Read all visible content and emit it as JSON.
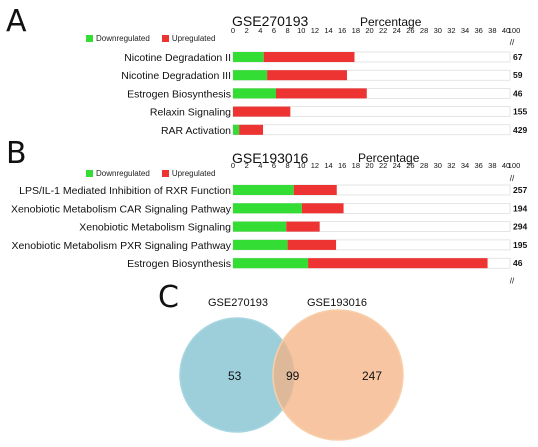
{
  "panels": [
    {
      "letter": "A"
    },
    {
      "letter": "B"
    },
    {
      "letter": "C"
    }
  ],
  "legend": {
    "down_label": "Downregulated",
    "up_label": "Upregulated",
    "down_color": "#33dd33",
    "up_color": "#ee3333"
  },
  "chart_data": [
    {
      "type": "bar",
      "orientation": "horizontal",
      "stacked": true,
      "title": "GSE270193",
      "xlabel": "Percentage",
      "xlim": [
        0,
        100
      ],
      "x_ticks": [
        "0",
        "2",
        "4",
        "6",
        "8",
        "10",
        "12",
        "14",
        "16",
        "18",
        "20",
        "22",
        "24",
        "26",
        "28",
        "30",
        "32",
        "34",
        "36",
        "38",
        "40",
        "100"
      ],
      "axis_break": "//",
      "categories": [
        "Nicotine Degradation II",
        "Nicotine Degradation III",
        "Estrogen Biosynthesis",
        "Relaxin Signaling",
        "RAR Activation"
      ],
      "series": [
        {
          "name": "Downregulated",
          "values": [
            4.5,
            5.0,
            6.3,
            0,
            0.9
          ]
        },
        {
          "name": "Upregulated",
          "values": [
            13.3,
            11.7,
            13.3,
            8.4,
            3.5
          ]
        }
      ],
      "counts": [
        "67",
        "59",
        "46",
        "155",
        "429"
      ]
    },
    {
      "type": "bar",
      "orientation": "horizontal",
      "stacked": true,
      "title": "GSE193016",
      "xlabel": "Percentage",
      "xlim": [
        0,
        100
      ],
      "x_ticks": [
        "0",
        "2",
        "4",
        "6",
        "8",
        "10",
        "12",
        "14",
        "16",
        "18",
        "20",
        "22",
        "24",
        "26",
        "28",
        "30",
        "32",
        "34",
        "36",
        "38",
        "40",
        "100"
      ],
      "axis_break": "//",
      "categories": [
        "LPS/IL-1 Mediated Inhibition of RXR Function",
        "Xenobiotic Metabolism CAR Signaling Pathway",
        "Xenobiotic Metabolism Signaling",
        "Xenobiotic Metabolism PXR Signaling Pathway",
        "Estrogen Biosynthesis"
      ],
      "series": [
        {
          "name": "Downregulated",
          "values": [
            8.9,
            10.1,
            7.8,
            8.0,
            11.0
          ]
        },
        {
          "name": "Upregulated",
          "values": [
            6.3,
            6.1,
            4.9,
            7.1,
            26.3
          ]
        }
      ],
      "counts": [
        "257",
        "194",
        "294",
        "195",
        "46"
      ]
    },
    {
      "type": "venn",
      "sets": [
        {
          "name": "GSE270193",
          "color": "#8cc7d5"
        },
        {
          "name": "GSE193016",
          "color": "#f4b283"
        }
      ],
      "values": {
        "only_a": "53",
        "both": "99",
        "only_b": "247"
      }
    }
  ]
}
